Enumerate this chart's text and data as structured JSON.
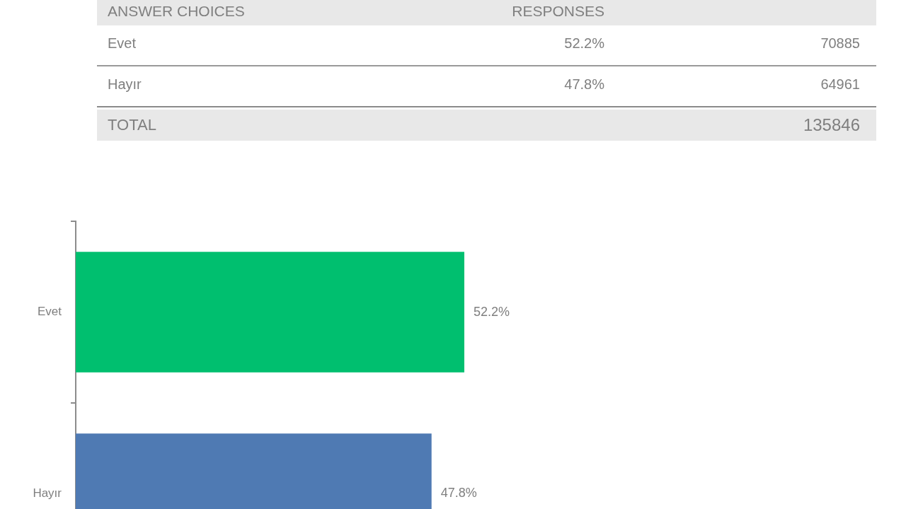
{
  "chart_data": {
    "type": "bar",
    "orientation": "horizontal",
    "categories": [
      "Evet",
      "Hayır"
    ],
    "values": [
      52.2,
      47.8
    ],
    "colors": [
      "#00bf6f",
      "#4f7ab3"
    ],
    "value_labels": [
      "52.2%",
      "47.8%"
    ],
    "tick_labels": "y",
    "annotations": [
      "ANSWER CHOICES",
      "RESPONSES",
      "70885",
      "64961",
      "TOTAL",
      "135846"
    ]
  }
}
